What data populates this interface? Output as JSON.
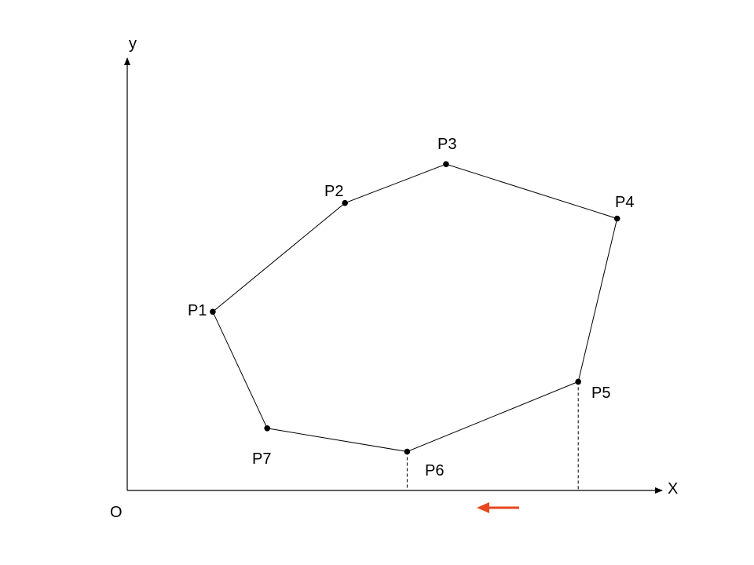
{
  "axes": {
    "x_label": "X",
    "y_label": "y",
    "origin_label": "O"
  },
  "points": [
    {
      "id": "p1",
      "label": "P1",
      "x": 1.1,
      "y": 2.3
    },
    {
      "id": "p2",
      "label": "P2",
      "x": 2.8,
      "y": 3.7
    },
    {
      "id": "p3",
      "label": "P3",
      "x": 4.1,
      "y": 4.2
    },
    {
      "id": "p4",
      "label": "P4",
      "x": 6.3,
      "y": 3.5
    },
    {
      "id": "p5",
      "label": "P5",
      "x": 5.8,
      "y": 1.4
    },
    {
      "id": "p6",
      "label": "P6",
      "x": 3.6,
      "y": 0.5
    },
    {
      "id": "p7",
      "label": "P7",
      "x": 1.8,
      "y": 0.8
    }
  ],
  "dashed_drops": [
    "p6",
    "p5"
  ],
  "arrow": {
    "direction": "left",
    "color": "#e8461e"
  },
  "colors": {
    "line": "#000000",
    "point": "#000000"
  }
}
